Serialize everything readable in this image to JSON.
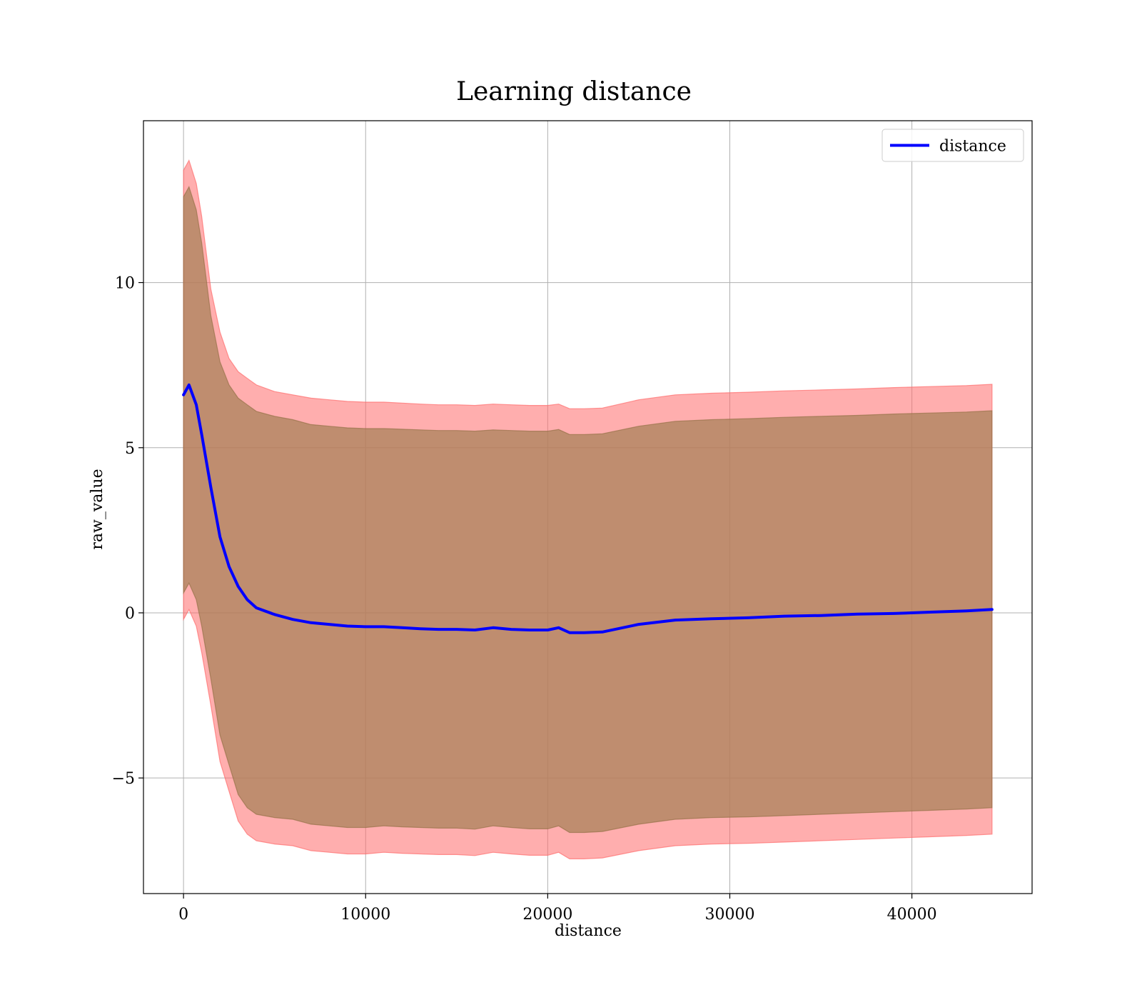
{
  "chart_data": {
    "type": "line",
    "title": "Learning distance",
    "xlabel": "distance",
    "ylabel": "raw_value",
    "xlim": [
      -2200,
      46600
    ],
    "ylim": [
      -8.5,
      14.9
    ],
    "xticks": [
      0,
      10000,
      20000,
      30000,
      40000
    ],
    "xtick_labels": [
      "0",
      "10000",
      "20000",
      "30000",
      "40000"
    ],
    "yticks": [
      -5,
      0,
      5,
      10
    ],
    "ytick_labels": [
      "−5",
      "0",
      "5",
      "10"
    ],
    "grid": true,
    "legend_position": "top-right",
    "colors": {
      "line": "#0000ff",
      "outer_band": "#ff8080",
      "inner_band": "#a5753c"
    },
    "series": [
      {
        "name": "distance",
        "x": [
          0,
          300,
          700,
          1000,
          1500,
          2000,
          2500,
          3000,
          3500,
          4000,
          5000,
          6000,
          7000,
          8000,
          9000,
          10000,
          11000,
          12000,
          13000,
          14000,
          15000,
          16000,
          17000,
          18000,
          19000,
          20000,
          20600,
          21200,
          22000,
          23000,
          25000,
          27000,
          29000,
          31000,
          33000,
          35000,
          37000,
          39000,
          41000,
          43000,
          44400
        ],
        "y": [
          6.6,
          6.9,
          6.3,
          5.4,
          3.8,
          2.3,
          1.4,
          0.8,
          0.4,
          0.15,
          -0.05,
          -0.2,
          -0.3,
          -0.35,
          -0.4,
          -0.42,
          -0.42,
          -0.45,
          -0.48,
          -0.5,
          -0.5,
          -0.52,
          -0.45,
          -0.5,
          -0.52,
          -0.52,
          -0.45,
          -0.6,
          -0.6,
          -0.58,
          -0.35,
          -0.22,
          -0.18,
          -0.15,
          -0.1,
          -0.08,
          -0.04,
          -0.02,
          0.02,
          0.06,
          0.1
        ]
      }
    ],
    "bands": [
      {
        "kind": "outer",
        "x": [
          0,
          300,
          700,
          1000,
          1500,
          2000,
          2500,
          3000,
          3500,
          4000,
          5000,
          6000,
          7000,
          8000,
          9000,
          10000,
          11000,
          12000,
          13000,
          14000,
          15000,
          16000,
          17000,
          18000,
          19000,
          20000,
          20600,
          21200,
          22000,
          23000,
          25000,
          27000,
          29000,
          31000,
          33000,
          35000,
          37000,
          39000,
          41000,
          43000,
          44400
        ],
        "upper": [
          13.4,
          13.7,
          13.0,
          12.0,
          9.8,
          8.5,
          7.7,
          7.3,
          7.1,
          6.9,
          6.7,
          6.6,
          6.5,
          6.45,
          6.4,
          6.38,
          6.38,
          6.35,
          6.32,
          6.3,
          6.3,
          6.28,
          6.32,
          6.3,
          6.28,
          6.28,
          6.32,
          6.18,
          6.18,
          6.2,
          6.45,
          6.6,
          6.65,
          6.68,
          6.72,
          6.75,
          6.78,
          6.82,
          6.85,
          6.88,
          6.92
        ],
        "lower": [
          -0.2,
          0.1,
          -0.4,
          -1.2,
          -2.8,
          -4.5,
          -5.4,
          -6.3,
          -6.7,
          -6.9,
          -7.0,
          -7.05,
          -7.2,
          -7.25,
          -7.3,
          -7.3,
          -7.25,
          -7.28,
          -7.3,
          -7.32,
          -7.32,
          -7.35,
          -7.25,
          -7.3,
          -7.34,
          -7.34,
          -7.25,
          -7.45,
          -7.45,
          -7.42,
          -7.2,
          -7.05,
          -7.0,
          -6.98,
          -6.94,
          -6.9,
          -6.86,
          -6.82,
          -6.78,
          -6.74,
          -6.7
        ]
      },
      {
        "kind": "inner",
        "x": [
          0,
          300,
          700,
          1000,
          1500,
          2000,
          2500,
          3000,
          3500,
          4000,
          5000,
          6000,
          7000,
          8000,
          9000,
          10000,
          11000,
          12000,
          13000,
          14000,
          15000,
          16000,
          17000,
          18000,
          19000,
          20000,
          20600,
          21200,
          22000,
          23000,
          25000,
          27000,
          29000,
          31000,
          33000,
          35000,
          37000,
          39000,
          41000,
          43000,
          44400
        ],
        "upper": [
          12.6,
          12.9,
          12.2,
          11.2,
          9.0,
          7.6,
          6.9,
          6.5,
          6.3,
          6.1,
          5.95,
          5.85,
          5.7,
          5.65,
          5.6,
          5.58,
          5.58,
          5.56,
          5.54,
          5.52,
          5.52,
          5.5,
          5.54,
          5.52,
          5.5,
          5.5,
          5.55,
          5.4,
          5.4,
          5.42,
          5.65,
          5.8,
          5.85,
          5.88,
          5.92,
          5.95,
          5.98,
          6.02,
          6.05,
          6.08,
          6.12
        ],
        "lower": [
          0.6,
          0.9,
          0.4,
          -0.4,
          -2.0,
          -3.7,
          -4.6,
          -5.5,
          -5.9,
          -6.1,
          -6.2,
          -6.25,
          -6.4,
          -6.45,
          -6.5,
          -6.5,
          -6.45,
          -6.48,
          -6.5,
          -6.52,
          -6.52,
          -6.55,
          -6.45,
          -6.5,
          -6.54,
          -6.54,
          -6.45,
          -6.65,
          -6.65,
          -6.62,
          -6.4,
          -6.25,
          -6.2,
          -6.18,
          -6.14,
          -6.1,
          -6.06,
          -6.02,
          -5.98,
          -5.94,
          -5.9
        ]
      }
    ]
  }
}
